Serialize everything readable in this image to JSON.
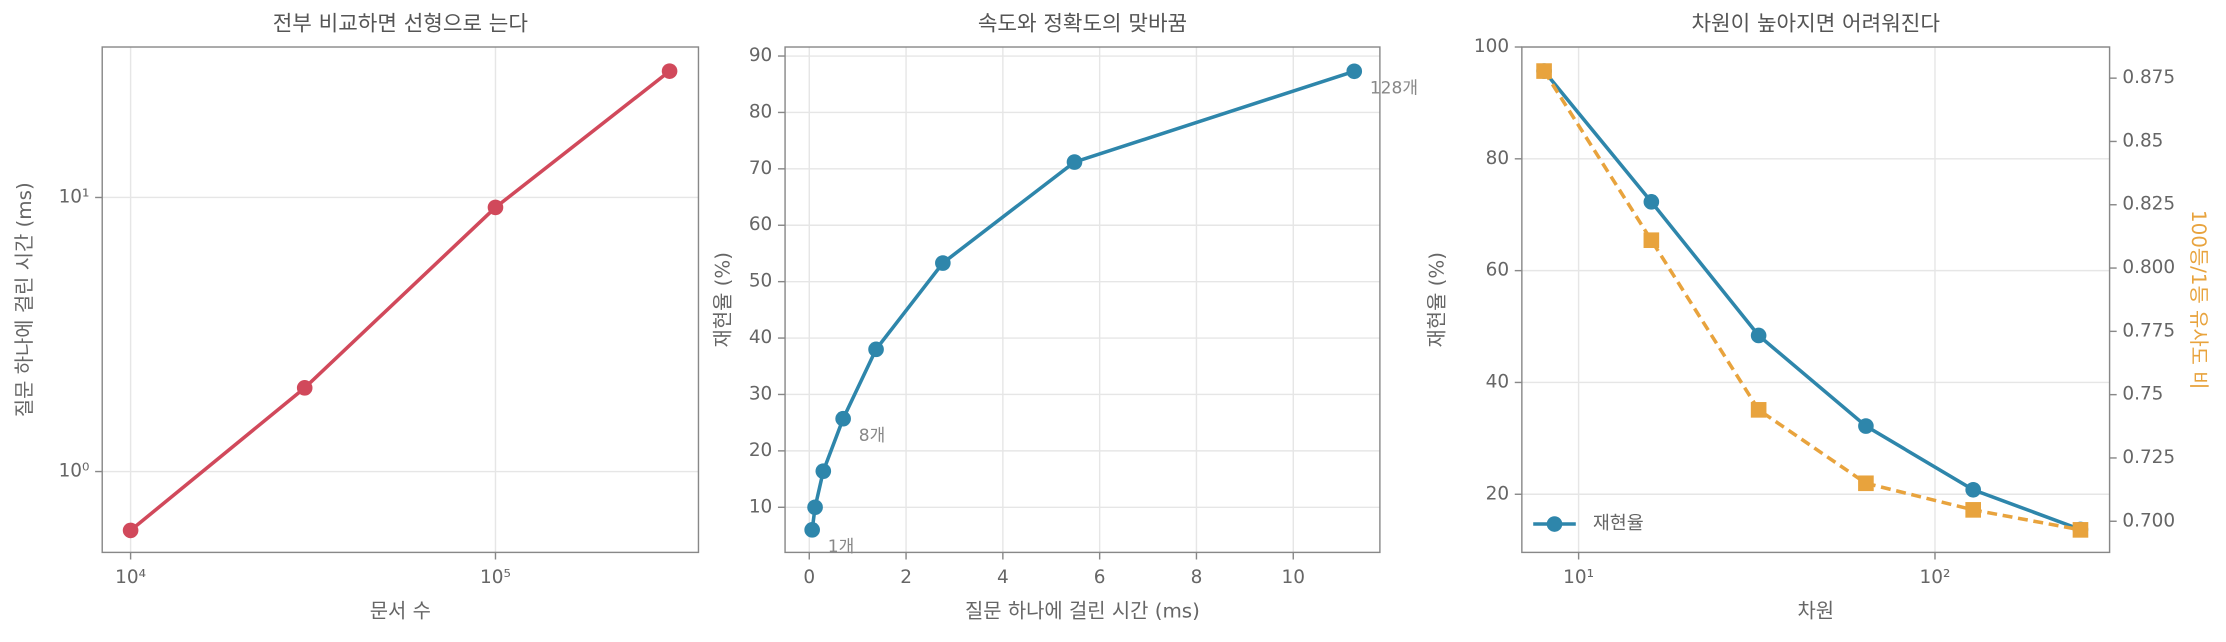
{
  "chart_data": [
    {
      "type": "line",
      "title": "전부 비교하면 선형으로 는다",
      "xlabel": "문서 수",
      "ylabel": "질문 하나에 걸린 시간 (ms)",
      "x": [
        10000,
        30000,
        100000,
        300000
      ],
      "series": [
        {
          "color": "#d1495b",
          "marker": "circle",
          "linestyle": "solid",
          "values": [
            0.61,
            2.02,
            9.2,
            28.9
          ]
        }
      ],
      "xscale": "log",
      "yscale": "log",
      "xlim": [
        8360,
        360000
      ],
      "ylim": [
        0.507,
        35.4
      ],
      "xticks": [
        {
          "value": 10000,
          "label": "10⁴"
        },
        {
          "value": 100000,
          "label": "10⁵"
        }
      ],
      "yticks": [
        {
          "value": 1,
          "label": "10⁰"
        },
        {
          "value": 10,
          "label": "10¹"
        }
      ],
      "grid": true
    },
    {
      "type": "line",
      "title": "속도와 정확도의 맞바꿈",
      "xlabel": "질문 하나에 걸린 시간 (ms)",
      "ylabel": "재현율 (%)",
      "x": [
        0.06,
        0.12,
        0.29,
        0.7,
        1.38,
        2.76,
        5.48,
        11.26
      ],
      "series": [
        {
          "color": "#2e86ab",
          "marker": "circle",
          "linestyle": "solid",
          "values": [
            6.0,
            10.0,
            16.4,
            25.7,
            38.0,
            53.3,
            71.2,
            87.3
          ],
          "point_labels": [
            "1개",
            null,
            null,
            "8개",
            null,
            null,
            null,
            "128개"
          ]
        }
      ],
      "xscale": "linear",
      "yscale": "linear",
      "xlim": [
        -0.5,
        11.79
      ],
      "ylim": [
        2.0,
        91.6
      ],
      "xticks": [
        0,
        2,
        4,
        6,
        8,
        10
      ],
      "yticks": [
        10,
        20,
        30,
        40,
        50,
        60,
        70,
        80,
        90
      ],
      "grid": true
    },
    {
      "type": "line",
      "title": "차원이 높아지면 어려워진다",
      "xlabel": "차원",
      "ylabel": "재현율 (%)",
      "y2label": "100등/1등 유사도 비",
      "y2label_color": "#e8a33d",
      "x": [
        8,
        16,
        32,
        64,
        128,
        256
      ],
      "series": [
        {
          "name": "재현율",
          "color": "#2e86ab",
          "marker": "circle",
          "linestyle": "solid",
          "values": [
            95.7,
            72.3,
            48.4,
            32.2,
            20.8,
            13.7
          ]
        },
        {
          "color": "#e8a33d",
          "marker": "square",
          "linestyle": "dashed",
          "axis": "y2",
          "values": [
            0.8778,
            0.811,
            0.744,
            0.715,
            0.7045,
            0.6966
          ]
        }
      ],
      "xscale": "log",
      "yscale": "linear",
      "xlim": [
        6.93,
        309
      ],
      "ylim": [
        9.6,
        100
      ],
      "y2lim": [
        0.6877,
        0.8873
      ],
      "xticks": [
        {
          "value": 10,
          "label": "10¹"
        },
        {
          "value": 100,
          "label": "10²"
        }
      ],
      "yticks": [
        20,
        40,
        60,
        80,
        100
      ],
      "y2ticks": [
        {
          "value": 0.7,
          "label": "0.700"
        },
        0.725,
        0.75,
        0.775,
        {
          "value": 0.8,
          "label": "0.800"
        },
        0.825,
        0.85,
        0.875
      ],
      "grid": true,
      "legend": "lower left"
    }
  ]
}
